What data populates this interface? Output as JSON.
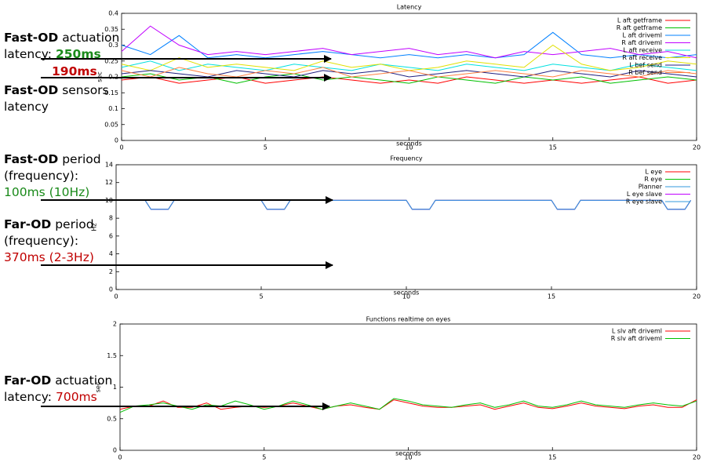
{
  "chart_data": [
    {
      "type": "line",
      "title": "Latency",
      "x_label": "seconds",
      "y_label": "sec",
      "x": [
        0,
        1,
        2,
        3,
        4,
        5,
        6,
        7,
        8,
        9,
        10,
        11,
        12,
        13,
        14,
        15,
        16,
        17,
        18,
        19,
        20
      ],
      "xlim": [
        0,
        20
      ],
      "xticks": [
        0,
        5,
        10,
        15,
        20
      ],
      "ylim": [
        0,
        0.4
      ],
      "yticks": [
        0,
        0.05,
        0.1,
        0.15,
        0.2,
        0.25,
        0.3,
        0.35,
        0.4
      ],
      "series": [
        {
          "name": "L aft getframe",
          "color": "#ff0000",
          "values": [
            0.19,
            0.2,
            0.18,
            0.19,
            0.2,
            0.18,
            0.19,
            0.2,
            0.19,
            0.18,
            0.19,
            0.18,
            0.2,
            0.19,
            0.18,
            0.19,
            0.18,
            0.19,
            0.2,
            0.18,
            0.19
          ]
        },
        {
          "name": "R aft getframe",
          "color": "#00c000",
          "values": [
            0.2,
            0.21,
            0.19,
            0.2,
            0.18,
            0.2,
            0.21,
            0.19,
            0.2,
            0.19,
            0.18,
            0.2,
            0.19,
            0.18,
            0.2,
            0.19,
            0.2,
            0.18,
            0.19,
            0.2,
            0.19
          ]
        },
        {
          "name": "L aft driveml",
          "color": "#0080ff",
          "values": [
            0.3,
            0.27,
            0.33,
            0.26,
            0.27,
            0.26,
            0.27,
            0.28,
            0.27,
            0.26,
            0.27,
            0.26,
            0.27,
            0.26,
            0.27,
            0.34,
            0.27,
            0.26,
            0.27,
            0.26,
            0.27
          ]
        },
        {
          "name": "R aft driveml",
          "color": "#c000ff",
          "values": [
            0.28,
            0.36,
            0.3,
            0.27,
            0.28,
            0.27,
            0.28,
            0.29,
            0.27,
            0.28,
            0.29,
            0.27,
            0.28,
            0.26,
            0.28,
            0.27,
            0.28,
            0.29,
            0.27,
            0.28,
            0.26
          ]
        },
        {
          "name": "L aft receive",
          "color": "#00e0e0",
          "values": [
            0.23,
            0.25,
            0.22,
            0.24,
            0.23,
            0.22,
            0.24,
            0.23,
            0.22,
            0.24,
            0.23,
            0.22,
            0.24,
            0.23,
            0.22,
            0.24,
            0.23,
            0.22,
            0.24,
            0.23,
            0.22
          ]
        },
        {
          "name": "R aft receive",
          "color": "#e0e000",
          "values": [
            0.24,
            0.22,
            0.26,
            0.23,
            0.24,
            0.23,
            0.22,
            0.25,
            0.23,
            0.24,
            0.22,
            0.23,
            0.25,
            0.24,
            0.23,
            0.3,
            0.24,
            0.22,
            0.23,
            0.25,
            0.24
          ]
        },
        {
          "name": "L bef send",
          "color": "#202080",
          "values": [
            0.21,
            0.22,
            0.21,
            0.2,
            0.22,
            0.21,
            0.2,
            0.22,
            0.21,
            0.22,
            0.2,
            0.21,
            0.22,
            0.21,
            0.2,
            0.22,
            0.21,
            0.2,
            0.22,
            0.21,
            0.2
          ]
        },
        {
          "name": "R bef send",
          "color": "#ff8040",
          "values": [
            0.22,
            0.2,
            0.23,
            0.21,
            0.2,
            0.22,
            0.21,
            0.23,
            0.2,
            0.21,
            0.22,
            0.2,
            0.21,
            0.22,
            0.21,
            0.2,
            0.22,
            0.21,
            0.2,
            0.22,
            0.21
          ]
        }
      ]
    },
    {
      "type": "line",
      "title": "Frequency",
      "x_label": "seconds",
      "y_label": "Hz",
      "x": [
        0,
        1,
        1.2,
        1.8,
        2,
        5,
        5.2,
        5.8,
        6,
        10,
        10.2,
        10.8,
        11,
        15,
        15.2,
        15.8,
        16,
        18.8,
        19,
        19.6,
        19.8
      ],
      "xlim": [
        0,
        20
      ],
      "xticks": [
        0,
        5,
        10,
        15,
        20
      ],
      "ylim": [
        0,
        14
      ],
      "yticks": [
        0,
        2,
        4,
        6,
        8,
        10,
        12,
        14
      ],
      "series": [
        {
          "name": "L eye",
          "color": "#ff0000",
          "values": [
            10,
            10,
            9,
            9,
            10,
            10,
            9,
            9,
            10,
            10,
            9,
            9,
            10,
            10,
            9,
            9,
            10,
            10,
            9,
            9,
            10
          ]
        },
        {
          "name": "R eye",
          "color": "#00c000",
          "values": [
            10,
            10,
            9,
            9,
            10,
            10,
            9,
            9,
            10,
            10,
            9,
            9,
            10,
            10,
            9,
            9,
            10,
            10,
            9,
            9,
            10
          ]
        },
        {
          "name": "Planner",
          "color": "#3399dd",
          "values": [
            10,
            10,
            9,
            9,
            10,
            10,
            9,
            9,
            10,
            10,
            9,
            9,
            10,
            10,
            9,
            9,
            10,
            10,
            9,
            9,
            10
          ]
        },
        {
          "name": "L eye slave",
          "color": "#c000ff",
          "values": [
            10,
            10,
            9,
            9,
            10,
            10,
            9,
            9,
            10,
            10,
            9,
            9,
            10,
            10,
            9,
            9,
            10,
            10,
            9,
            9,
            10
          ]
        },
        {
          "name": "R eye slave",
          "color": "#3399dd",
          "values": [
            10,
            10,
            9,
            9,
            10,
            10,
            9,
            9,
            10,
            10,
            9,
            9,
            10,
            10,
            9,
            9,
            10,
            10,
            9,
            9,
            10
          ]
        }
      ]
    },
    {
      "type": "line",
      "title": "Functions realtime on eyes",
      "x_label": "seconds",
      "y_label": "sec",
      "x": [
        0,
        0.5,
        1,
        1.5,
        2,
        2.5,
        3,
        3.5,
        4,
        4.5,
        5,
        5.5,
        6,
        6.5,
        7,
        7.5,
        8,
        8.5,
        9,
        9.5,
        10,
        10.5,
        11,
        11.5,
        12,
        12.5,
        13,
        13.5,
        14,
        14.5,
        15,
        15.5,
        16,
        16.5,
        17,
        17.5,
        18,
        18.5,
        19,
        19.5,
        20
      ],
      "xlim": [
        0,
        20
      ],
      "xticks": [
        0,
        5,
        10,
        15,
        20
      ],
      "ylim": [
        0,
        2
      ],
      "yticks": [
        0,
        0.5,
        1,
        1.5,
        2
      ],
      "series": [
        {
          "name": "L slv aft driveml",
          "color": "#ff0000",
          "values": [
            0.65,
            0.7,
            0.7,
            0.78,
            0.68,
            0.68,
            0.75,
            0.65,
            0.68,
            0.7,
            0.68,
            0.7,
            0.75,
            0.7,
            0.65,
            0.7,
            0.72,
            0.68,
            0.65,
            0.8,
            0.75,
            0.7,
            0.68,
            0.68,
            0.7,
            0.72,
            0.65,
            0.7,
            0.75,
            0.68,
            0.66,
            0.7,
            0.75,
            0.7,
            0.68,
            0.66,
            0.7,
            0.72,
            0.68,
            0.68,
            0.8
          ]
        },
        {
          "name": "R slv aft driveml",
          "color": "#00c000",
          "values": [
            0.6,
            0.7,
            0.72,
            0.75,
            0.7,
            0.65,
            0.72,
            0.7,
            0.78,
            0.72,
            0.65,
            0.7,
            0.78,
            0.72,
            0.65,
            0.7,
            0.75,
            0.7,
            0.65,
            0.82,
            0.78,
            0.72,
            0.7,
            0.68,
            0.72,
            0.75,
            0.68,
            0.72,
            0.78,
            0.7,
            0.68,
            0.72,
            0.78,
            0.72,
            0.7,
            0.68,
            0.72,
            0.75,
            0.72,
            0.7,
            0.78
          ]
        }
      ]
    }
  ],
  "annotations": [
    {
      "lines": [
        [
          {
            "text": "Fast-OD",
            "bold": true
          },
          {
            "text": " actuation"
          }
        ],
        [
          {
            "text": "latency: "
          },
          {
            "text": "250ms",
            "bold": true,
            "color": "#1a8a1a"
          }
        ]
      ]
    },
    {
      "lines": [
        [
          {
            "text": "190ms",
            "bold": true,
            "color": "#c00000"
          }
        ]
      ]
    },
    {
      "lines": [
        [
          {
            "text": "Fast-OD",
            "bold": true
          },
          {
            "text": " sensors"
          }
        ],
        [
          {
            "text": "latency"
          }
        ]
      ]
    },
    {
      "lines": [
        [
          {
            "text": "Fast-OD",
            "bold": true
          },
          {
            "text": " period"
          }
        ],
        [
          {
            "text": "(frequency):"
          }
        ],
        [
          {
            "text": "100ms (10Hz)",
            "color": "#1a8a1a"
          }
        ]
      ]
    },
    {
      "lines": [
        [
          {
            "text": "Far-OD",
            "bold": true
          },
          {
            "text": " period"
          }
        ],
        [
          {
            "text": "(frequency):"
          }
        ],
        [
          {
            "text": "370ms (2-3Hz)",
            "color": "#c00000"
          }
        ]
      ]
    },
    {
      "lines": [
        [
          {
            "text": "Far-OD",
            "bold": true
          },
          {
            "text": " actuation"
          }
        ],
        [
          {
            "text": "latency: "
          },
          {
            "text": "700ms",
            "color": "#c00000"
          }
        ]
      ]
    }
  ]
}
